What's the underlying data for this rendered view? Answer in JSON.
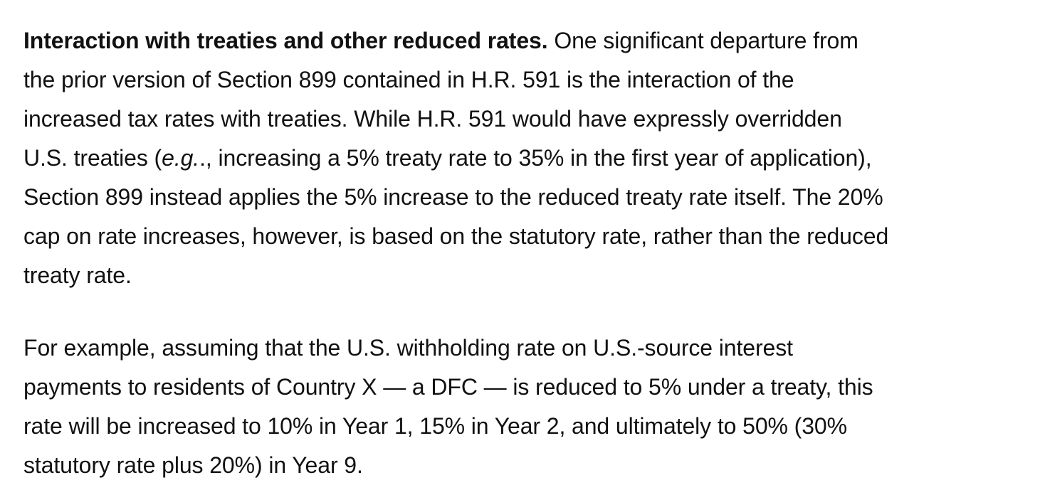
{
  "document": {
    "paragraphs": [
      {
        "lead": "Interaction with treaties and other reduced rates.",
        "lines": [
          " One significant departure from",
          "the prior version of Section 899 contained in H.R. 591 is the interaction of the",
          "increased tax rates with treaties. While H.R. 591 would have expressly overridden",
          "U.S. treaties (",
          "e.g.",
          "., increasing a 5% treaty rate to 35% in the first year of application),",
          "Section 899 instead applies the 5% increase to the reduced treaty rate itself. The 20%",
          "cap on rate increases, however, is based on the statutory rate, rather than the reduced",
          "treaty rate."
        ]
      },
      {
        "lines": [
          "For example, assuming that the U.S. withholding rate on U.S.-source interest",
          "payments to residents of Country X — a DFC — is reduced to 5% under a treaty, this",
          "rate will be increased to 10% in Year 1, 15% in Year 2, and ultimately to 50% (30%",
          "statutory rate plus 20%) in Year 9."
        ]
      }
    ]
  }
}
